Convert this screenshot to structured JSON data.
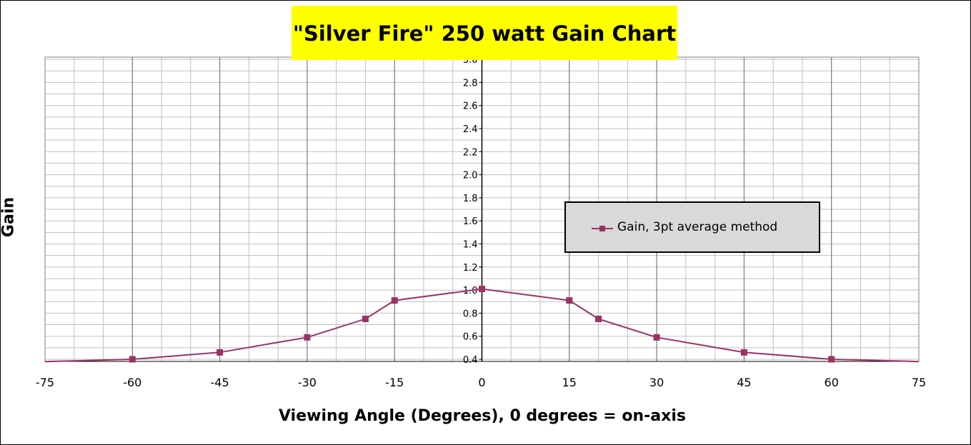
{
  "chart_data": {
    "type": "line",
    "title": "\"Silver Fire\" 250 watt Gain Chart",
    "xlabel": "Viewing Angle (Degrees), 0 degrees = on-axis",
    "ylabel": "Gain",
    "xlim": [
      -75,
      75
    ],
    "ylim": [
      0.4,
      3.0
    ],
    "x_ticks": [
      "-75",
      "-60",
      "-45",
      "-30",
      "-15",
      "0",
      "15",
      "30",
      "45",
      "60",
      "75"
    ],
    "y_ticks": [
      "0.4",
      "0.6",
      "0.8",
      "1.0",
      "1.2",
      "1.4",
      "1.6",
      "1.8",
      "2.0",
      "2.2",
      "2.4",
      "2.6",
      "2.8",
      "3.0"
    ],
    "grid": true,
    "legend_position": "right",
    "series": [
      {
        "name": "Gain, 3pt average method",
        "color": "#993366",
        "marker": "square",
        "x": [
          -75,
          -60,
          -45,
          -30,
          -20,
          -15,
          0,
          15,
          20,
          30,
          45,
          60,
          75
        ],
        "y": [
          0.38,
          0.4,
          0.46,
          0.59,
          0.75,
          0.91,
          1.01,
          0.91,
          0.75,
          0.59,
          0.46,
          0.4,
          0.38
        ],
        "marked": [
          false,
          true,
          true,
          true,
          true,
          true,
          true,
          true,
          true,
          true,
          true,
          true,
          false
        ]
      }
    ]
  }
}
